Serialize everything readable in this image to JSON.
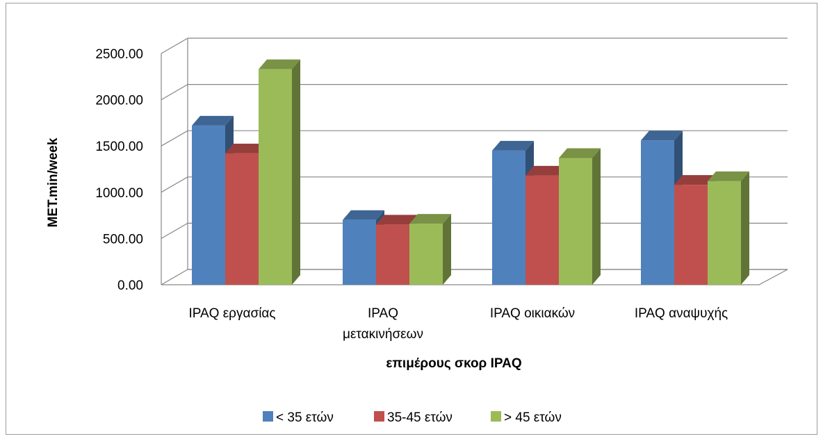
{
  "chart_data": {
    "type": "bar",
    "subtype": "3d-clustered-column",
    "title": "",
    "xlabel": "επιμέρους σκορ IPAQ",
    "ylabel": "MET.min/week",
    "ylim": [
      0,
      2500
    ],
    "yticks": [
      "0.00",
      "500.00",
      "1000.00",
      "1500.00",
      "2000.00",
      "2500.00"
    ],
    "grid": true,
    "legend_position": "bottom",
    "categories": [
      [
        "IPAQ εργασίας"
      ],
      [
        "IPAQ",
        "μετακινήσεων"
      ],
      [
        "IPAQ οικιακών"
      ],
      [
        "IPAQ αναψυχής"
      ]
    ],
    "series": [
      {
        "name": "< 35 ετών",
        "color": "#4F81BD",
        "values": [
          1720,
          700,
          1450,
          1560
        ]
      },
      {
        "name": "35-45 ετών",
        "color": "#C0504D",
        "values": [
          1420,
          650,
          1180,
          1080
        ]
      },
      {
        "name": "> 45 ετών",
        "color": "#9BBB59",
        "values": [
          2330,
          660,
          1370,
          1120
        ]
      }
    ]
  }
}
